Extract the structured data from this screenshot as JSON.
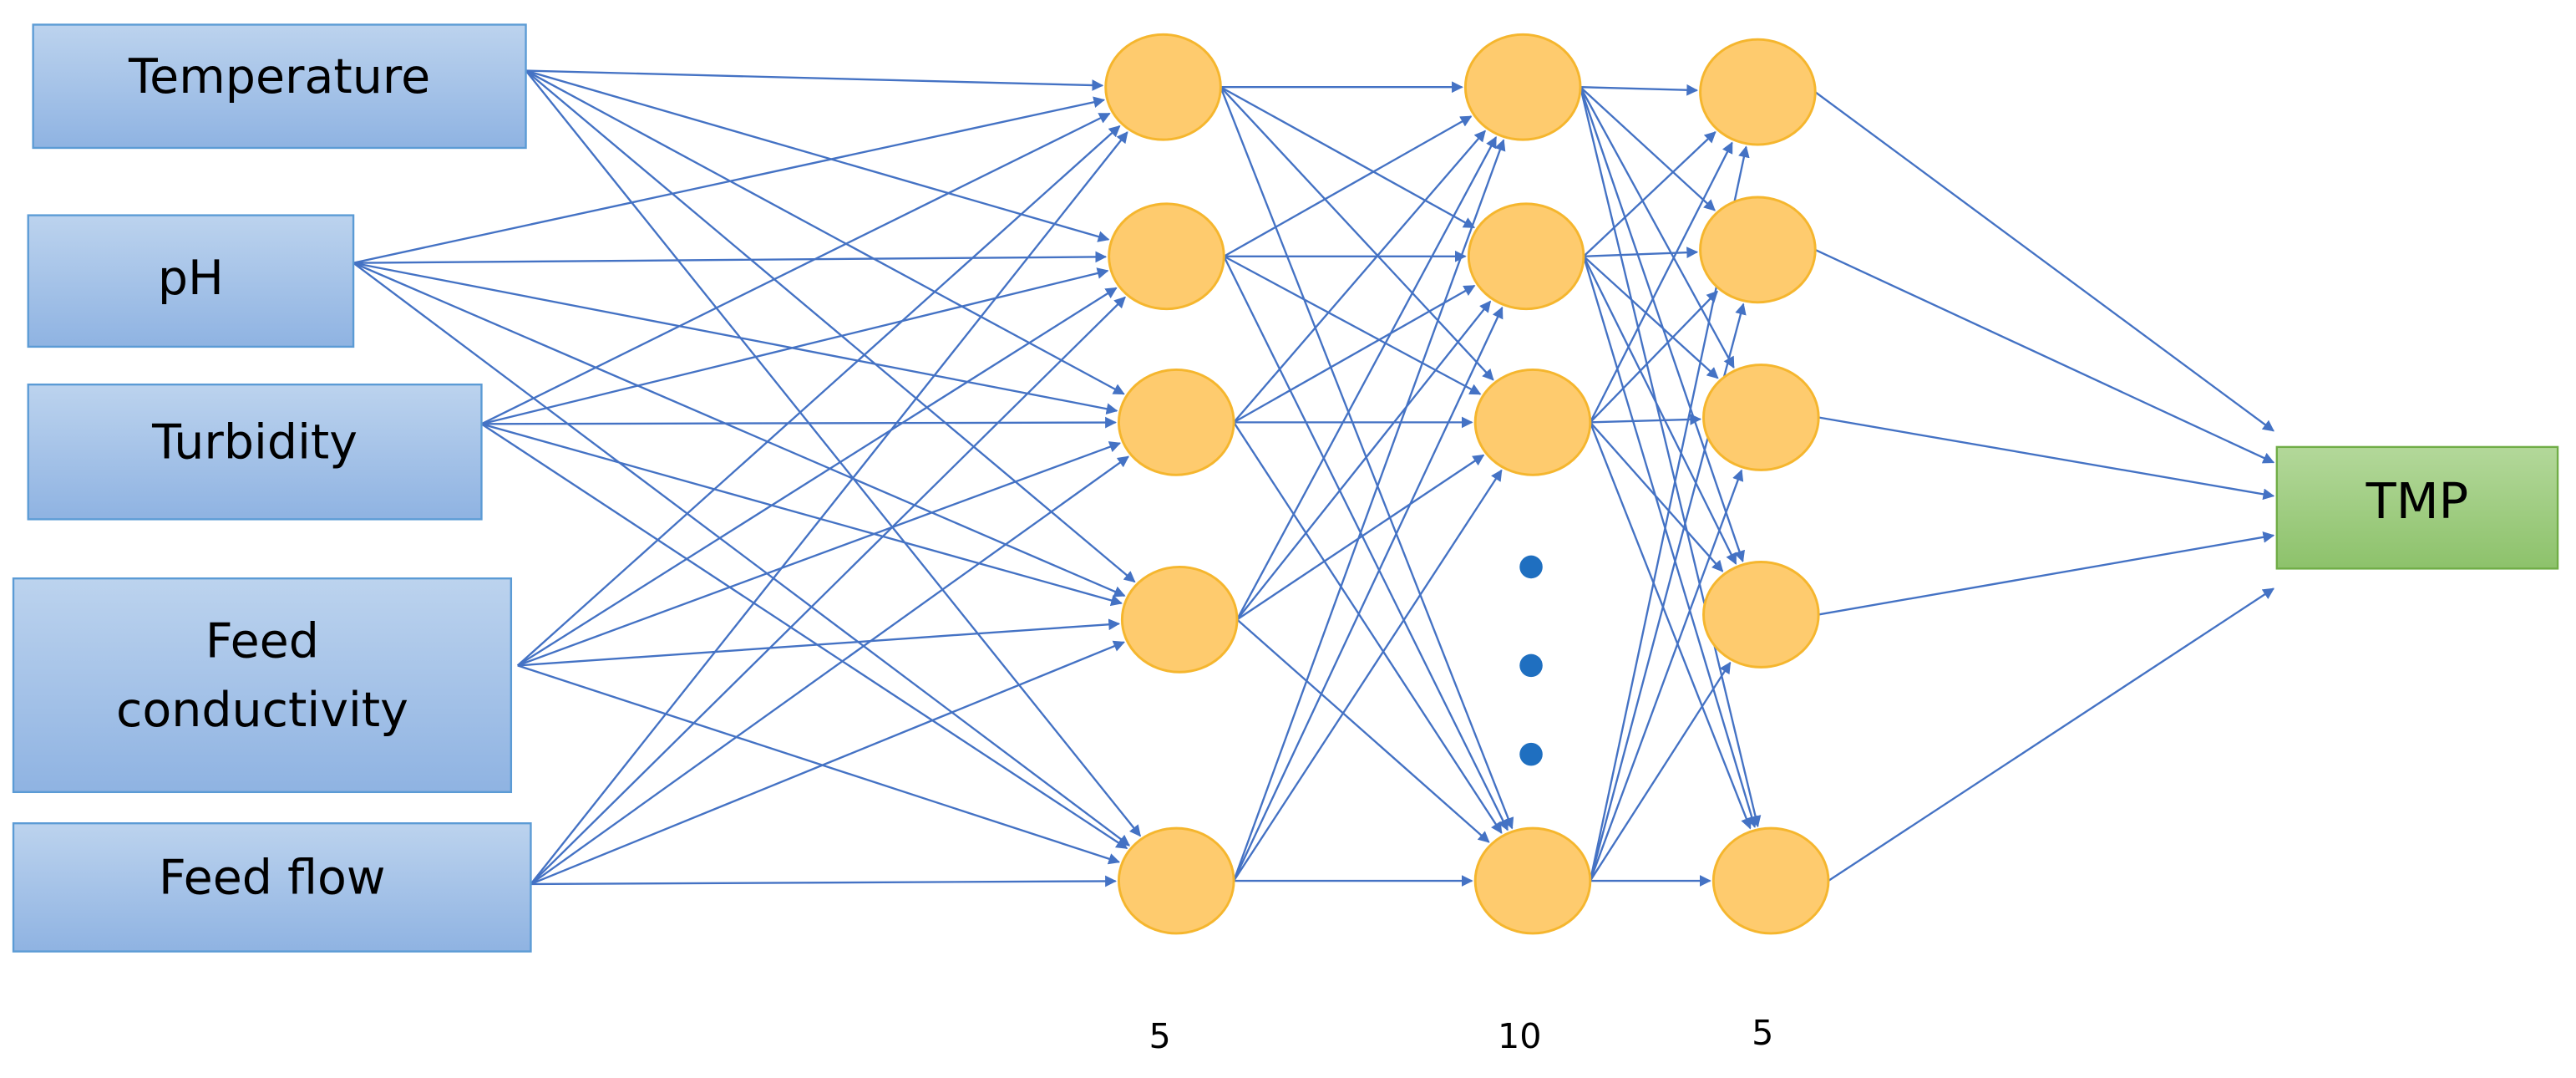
{
  "inputs": [
    {
      "lines": [
        "Temperature"
      ]
    },
    {
      "lines": [
        "pH"
      ]
    },
    {
      "lines": [
        "Turbidity"
      ]
    },
    {
      "lines": [
        "Feed",
        "conductivity"
      ]
    },
    {
      "lines": [
        "Feed flow"
      ]
    }
  ],
  "output": {
    "label": "TMP"
  },
  "layer_sizes": [
    "5",
    "10",
    "5"
  ]
}
